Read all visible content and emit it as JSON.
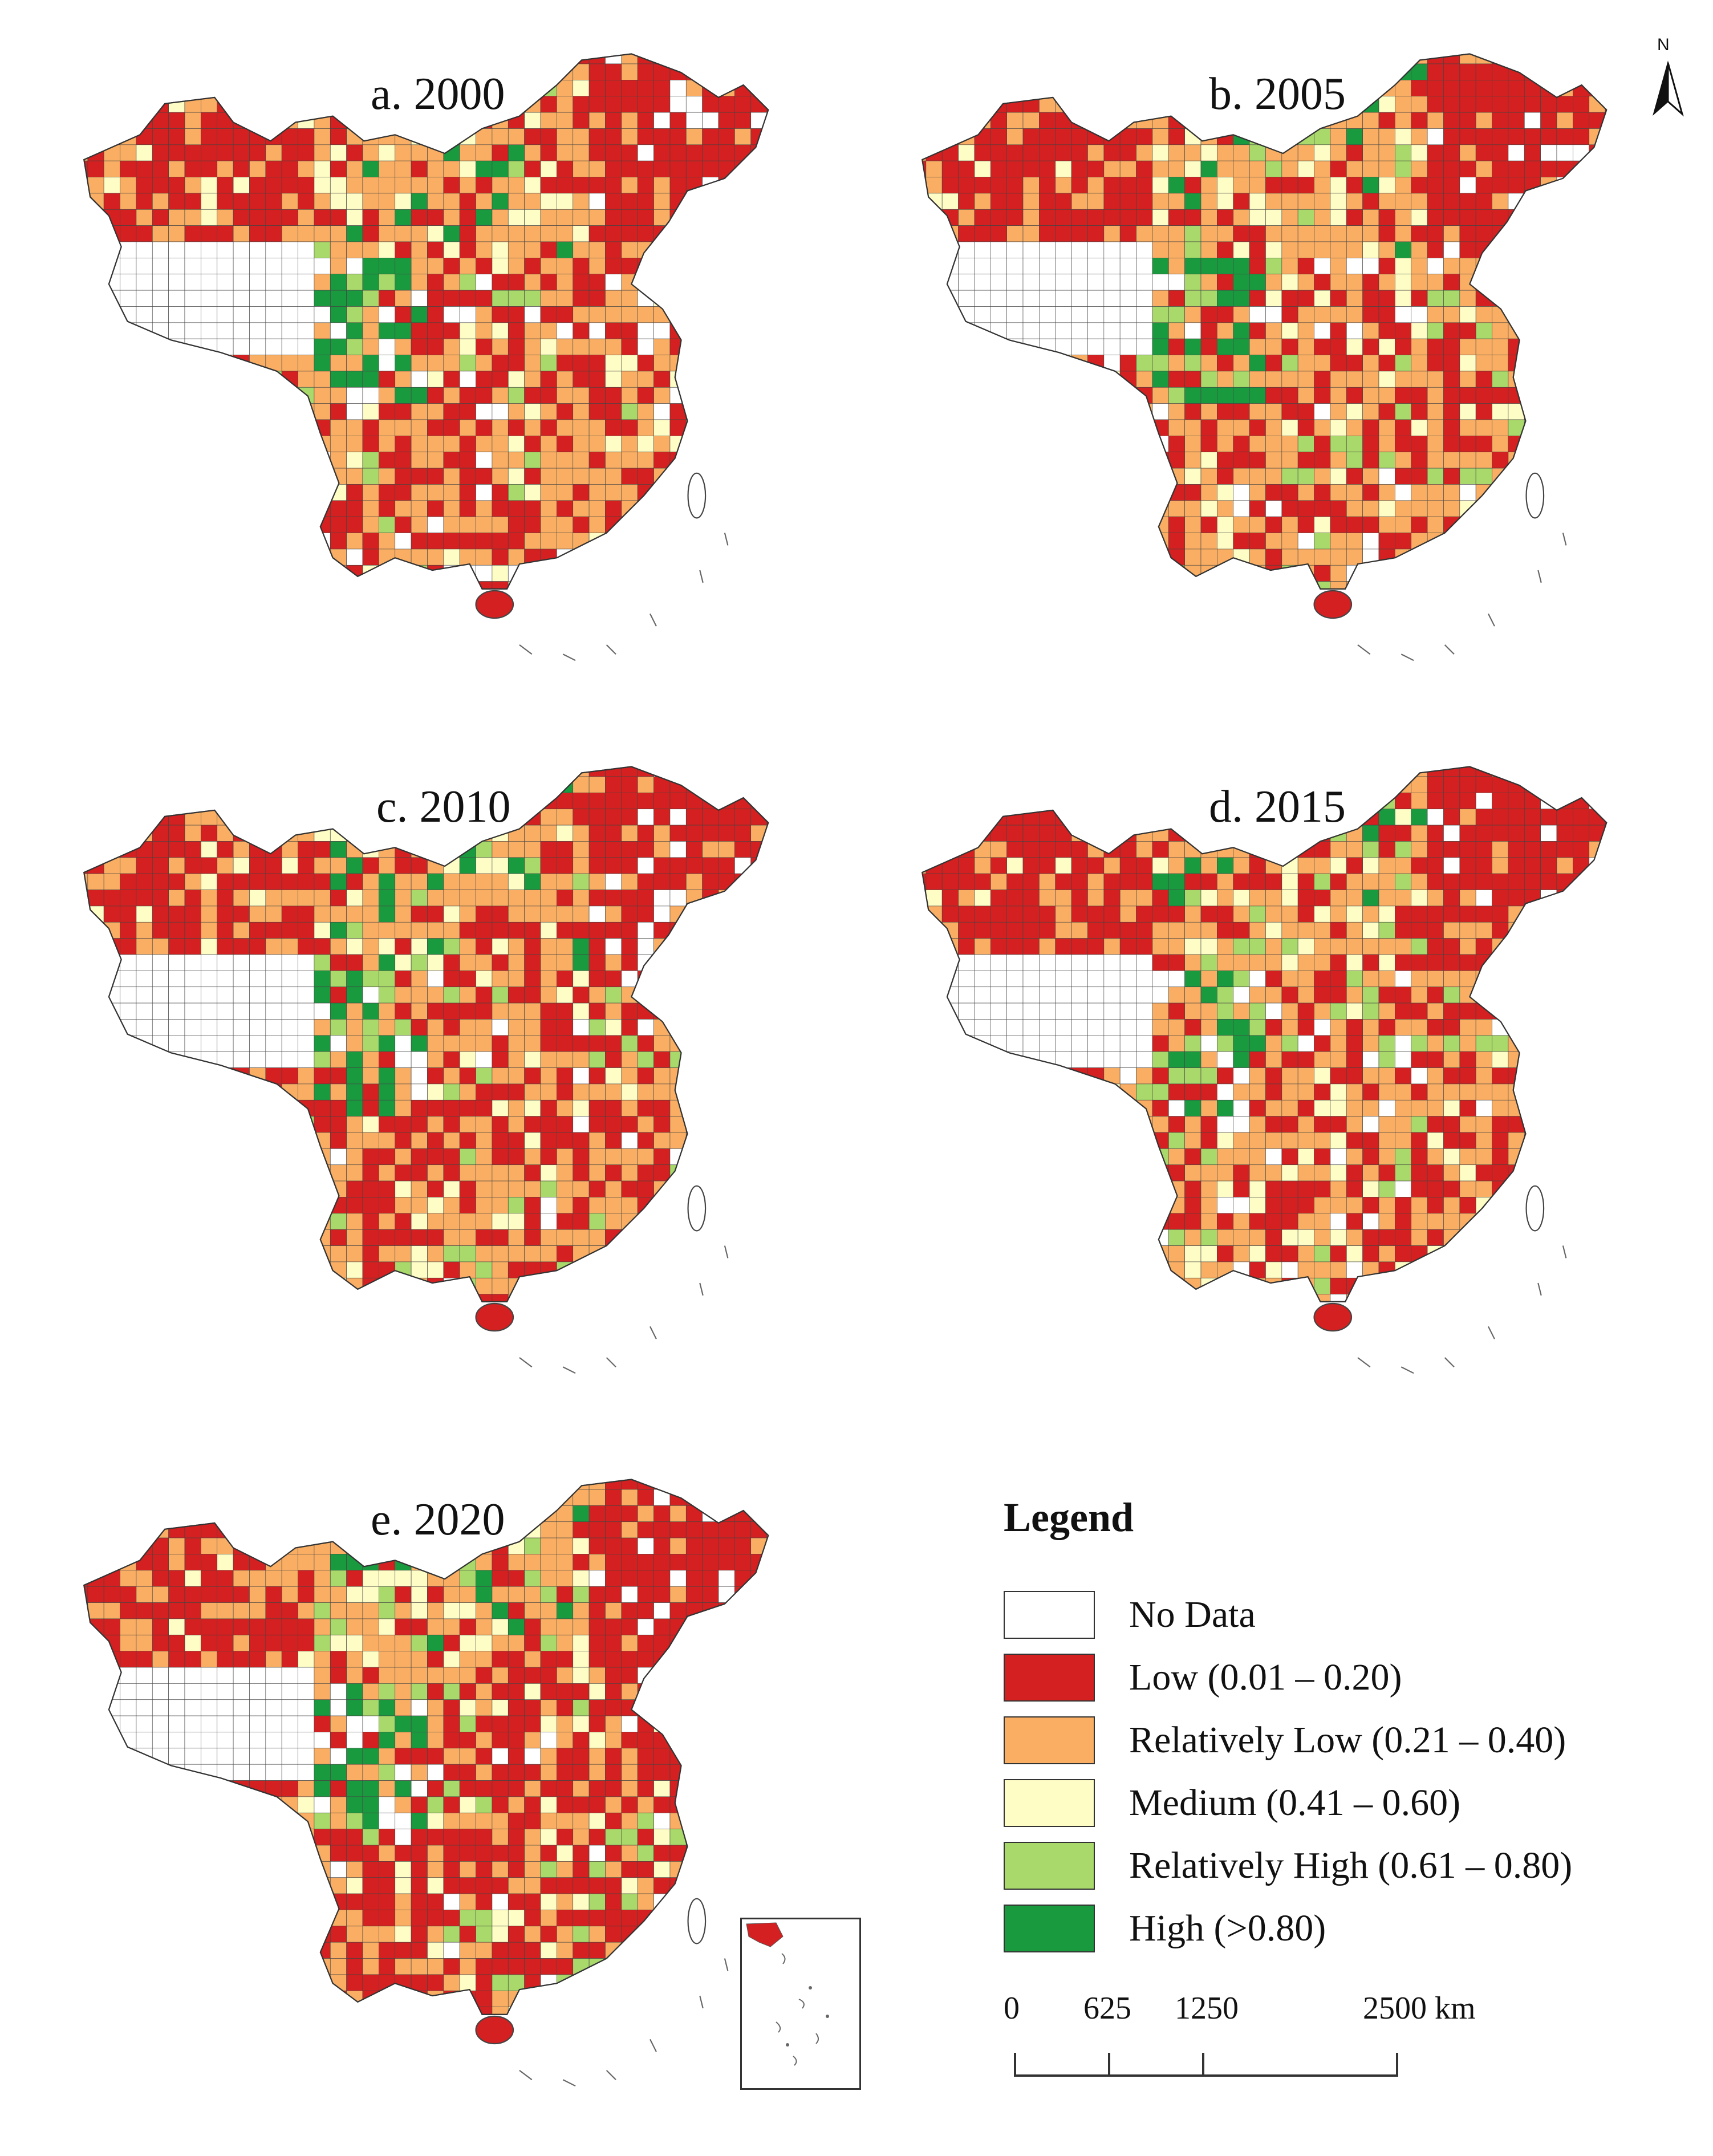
{
  "panels": [
    {
      "title": "a. 2000"
    },
    {
      "title": "b. 2005"
    },
    {
      "title": "c. 2010"
    },
    {
      "title": "d. 2015"
    },
    {
      "title": "e. 2020"
    }
  ],
  "north_arrow": {
    "label": "N"
  },
  "legend": {
    "title": "Legend",
    "items": [
      {
        "label": "No Data",
        "color": "#ffffff"
      },
      {
        "label": "Low (0.01 – 0.20)",
        "color": "#d42020"
      },
      {
        "label": "Relatively Low (0.21 – 0.40)",
        "color": "#f9ae63"
      },
      {
        "label": "Medium (0.41 – 0.60)",
        "color": "#fefdc6"
      },
      {
        "label": "Relatively High (0.61 – 0.80)",
        "color": "#a8d96a"
      },
      {
        "label": "High (>0.80)",
        "color": "#1a9a3f"
      }
    ]
  },
  "scale_bar": {
    "ticks": [
      "0",
      "625",
      "1250",
      "2500 km"
    ]
  }
}
